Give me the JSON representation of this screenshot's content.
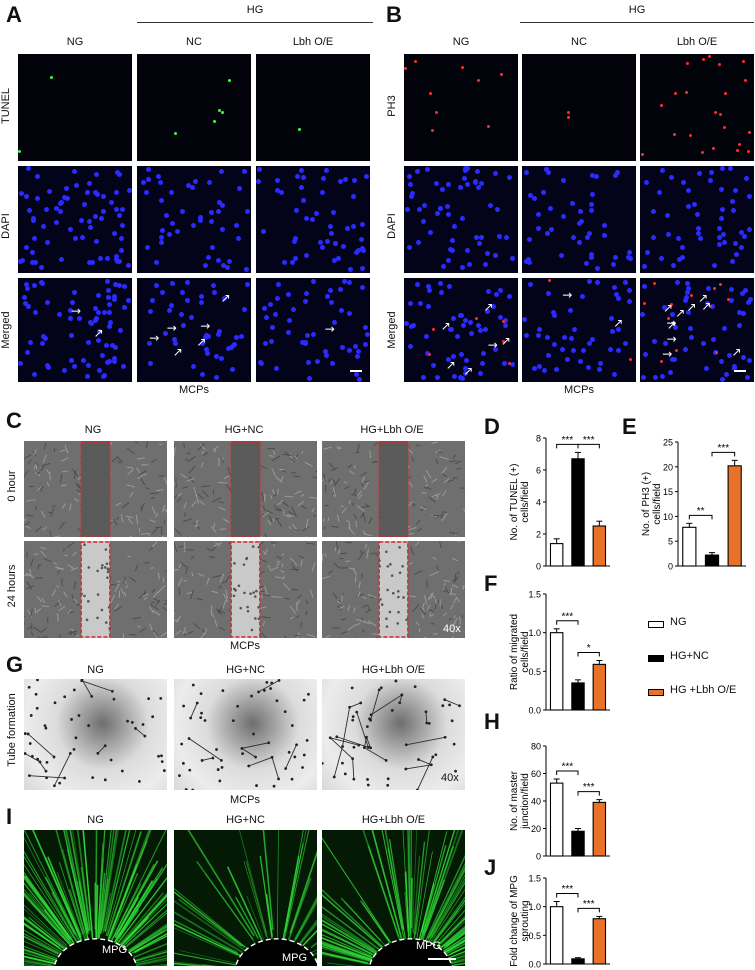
{
  "panels": {
    "A": {
      "letter": "A",
      "group": "HG",
      "columns": [
        "NG",
        "NC",
        "Lbh O/E"
      ],
      "rows": [
        "TUNEL",
        "DAPI",
        "Merged"
      ],
      "caption": "MCPs"
    },
    "B": {
      "letter": "B",
      "group": "HG",
      "columns": [
        "NG",
        "NC",
        "Lbh O/E"
      ],
      "rows": [
        "PH3",
        "DAPI",
        "Merged"
      ],
      "caption": "MCPs"
    },
    "C": {
      "letter": "C",
      "columns": [
        "NG",
        "HG+NC",
        "HG+Lbh O/E"
      ],
      "rows": [
        "0 hour",
        "24 hours"
      ],
      "caption": "MCPs",
      "magnification": "40x"
    },
    "G": {
      "letter": "G",
      "columns": [
        "NG",
        "HG+NC",
        "HG+Lbh O/E"
      ],
      "row": "Tube formation",
      "caption": "MCPs",
      "magnification": "40x"
    },
    "I": {
      "letter": "I",
      "columns": [
        "NG",
        "HG+NC",
        "HG+Lbh O/E"
      ],
      "region": "MPG"
    }
  },
  "legend": {
    "entries": [
      {
        "label": "NG",
        "color": "#ffffff"
      },
      {
        "label": "HG+NC",
        "color": "#000000"
      },
      {
        "label": "HG +Lbh O/E",
        "color": "#e8722a"
      }
    ]
  },
  "colors": {
    "ng": "#ffffff",
    "hgnc": "#000000",
    "lbh": "#e8722a",
    "frame": "#d9262b"
  },
  "chart_data": [
    {
      "panel": "D",
      "type": "bar",
      "categories": [
        "NG",
        "HG+NC",
        "HG +Lbh O/E"
      ],
      "values": [
        1.4,
        6.7,
        2.5
      ],
      "errors": [
        0.3,
        0.4,
        0.3
      ],
      "ylabel": "No. of TUNEL (+) cells/field",
      "ylim": [
        0,
        8
      ],
      "yticks": [
        0,
        2,
        4,
        6,
        8
      ],
      "significance": [
        {
          "pair": [
            0,
            1
          ],
          "label": "***"
        },
        {
          "pair": [
            1,
            2
          ],
          "label": "***"
        }
      ]
    },
    {
      "panel": "E",
      "type": "bar",
      "categories": [
        "NG",
        "HG+NC",
        "HG +Lbh O/E"
      ],
      "values": [
        7.8,
        2.2,
        20.2
      ],
      "errors": [
        0.8,
        0.5,
        1.1
      ],
      "ylabel": "No. of PH3 (+) cells/field",
      "ylim": [
        0,
        25
      ],
      "yticks": [
        0,
        5,
        10,
        15,
        20,
        25
      ],
      "significance": [
        {
          "pair": [
            0,
            1
          ],
          "label": "**"
        },
        {
          "pair": [
            1,
            2
          ],
          "label": "***"
        }
      ]
    },
    {
      "panel": "F",
      "type": "bar",
      "categories": [
        "NG",
        "HG+NC",
        "HG +Lbh O/E"
      ],
      "values": [
        1.0,
        0.35,
        0.59
      ],
      "errors": [
        0.05,
        0.04,
        0.05
      ],
      "ylabel": "Ratio of migrated cells/field",
      "ylim": [
        0,
        1.5
      ],
      "yticks": [
        0.0,
        0.5,
        1.0,
        1.5
      ],
      "significance": [
        {
          "pair": [
            0,
            1
          ],
          "label": "***"
        },
        {
          "pair": [
            1,
            2
          ],
          "label": "*"
        }
      ]
    },
    {
      "panel": "H",
      "type": "bar",
      "categories": [
        "NG",
        "HG+NC",
        "HG +Lbh O/E"
      ],
      "values": [
        53,
        18,
        39
      ],
      "errors": [
        3,
        2,
        2
      ],
      "ylabel": "No. of master junction/field",
      "ylim": [
        0,
        80
      ],
      "yticks": [
        0,
        20,
        40,
        60,
        80
      ],
      "significance": [
        {
          "pair": [
            0,
            1
          ],
          "label": "***"
        },
        {
          "pair": [
            1,
            2
          ],
          "label": "***"
        }
      ]
    },
    {
      "panel": "J",
      "type": "bar",
      "categories": [
        "NG",
        "HG+NC",
        "HG +Lbh O/E"
      ],
      "values": [
        1.0,
        0.09,
        0.79
      ],
      "errors": [
        0.09,
        0.02,
        0.04
      ],
      "ylabel": "Fold change of MPG sprouting",
      "ylim": [
        0,
        1.5
      ],
      "yticks": [
        0.0,
        0.5,
        1.0,
        1.5
      ],
      "significance": [
        {
          "pair": [
            0,
            1
          ],
          "label": "***"
        },
        {
          "pair": [
            1,
            2
          ],
          "label": "***"
        }
      ]
    }
  ]
}
